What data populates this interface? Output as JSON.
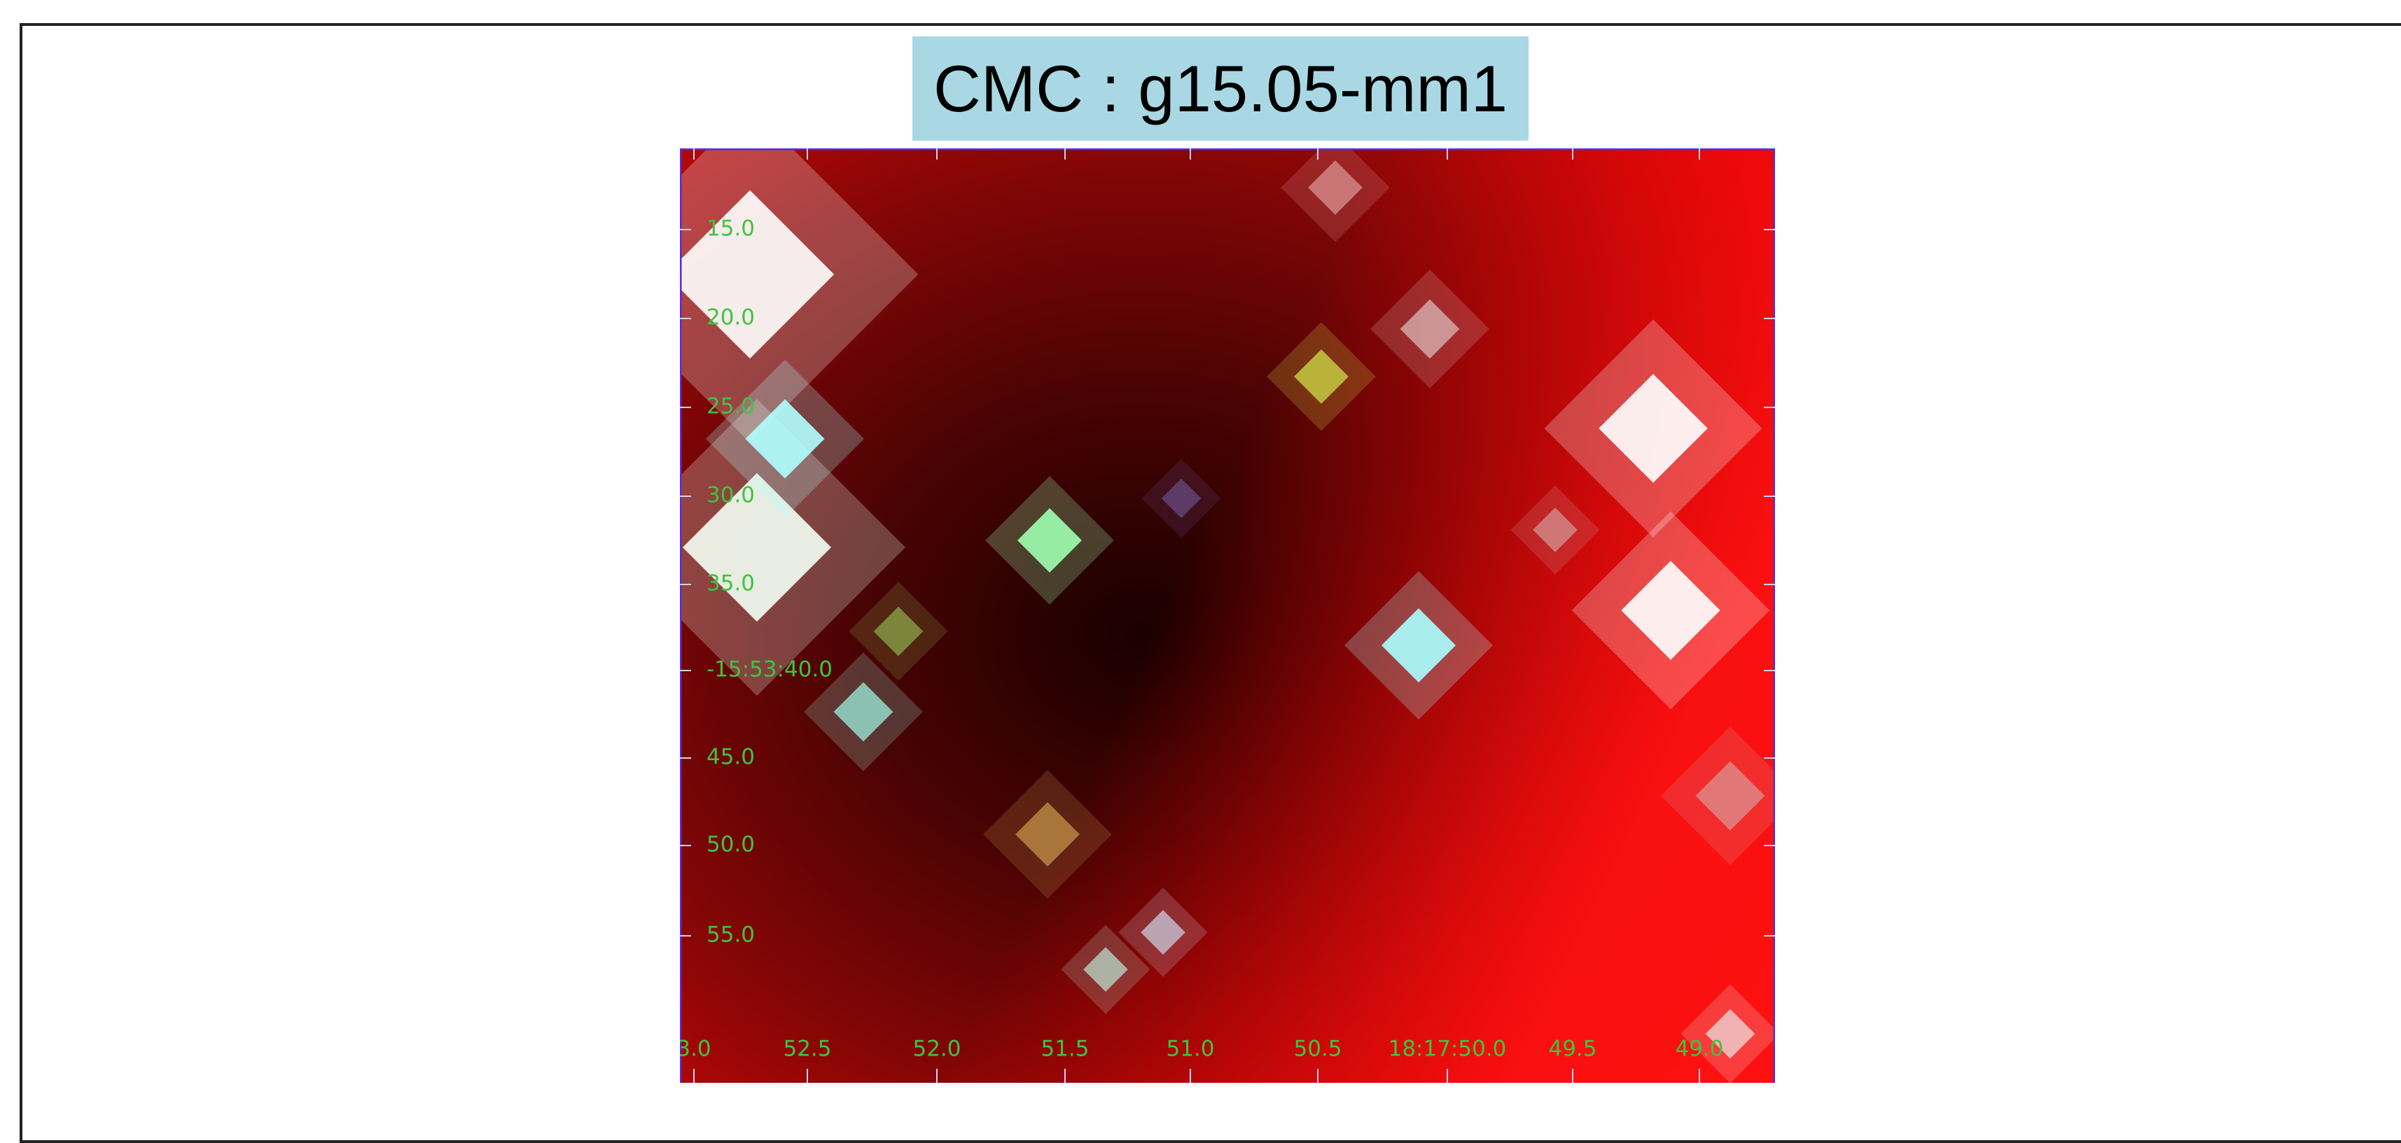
{
  "header": {
    "title": "CMC : g15.05-mm1"
  },
  "image": {
    "y_labels": [
      "15.0",
      "20.0",
      "25.0",
      "30.0",
      "35.0",
      "-15:53:40.0",
      "45.0",
      "50.0",
      "55.0"
    ],
    "x_labels": [
      "3.0",
      "52.5",
      "52.0",
      "51.5",
      "51.0",
      "50.5",
      "18:17:50.0",
      "49.5",
      "49.0"
    ]
  }
}
